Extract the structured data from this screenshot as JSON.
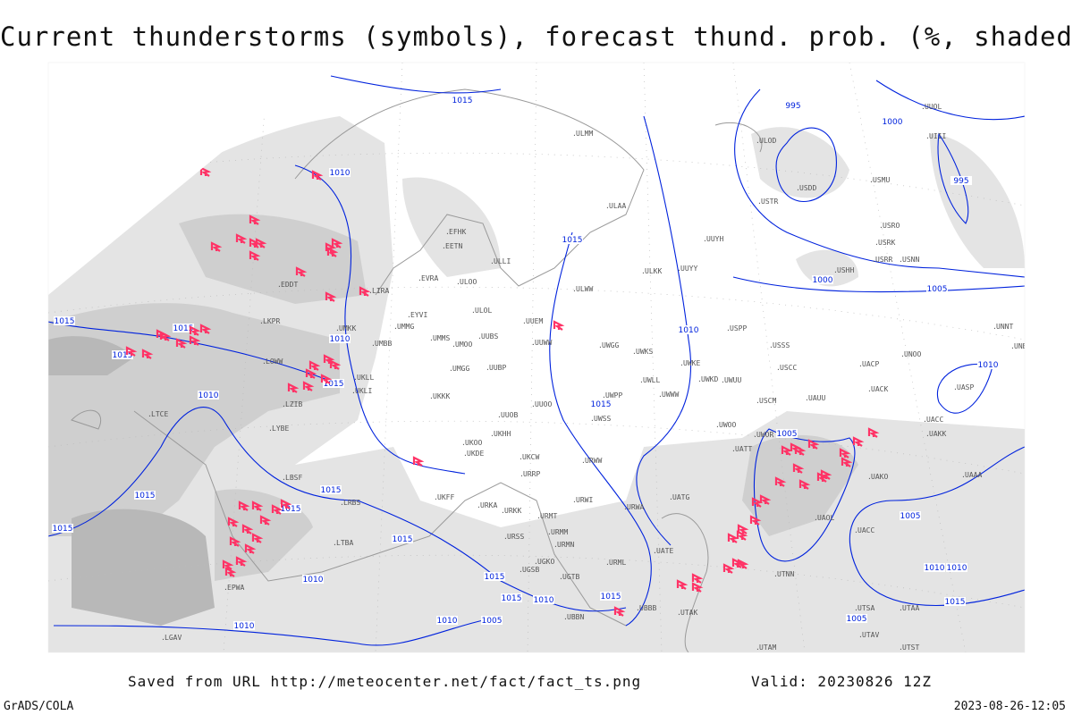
{
  "title": "Current thunderstorms (symbols), forecast thund. prob. (%, shaded)",
  "footer": {
    "saved_from": "Saved from URL http://meteocenter.net/fact/fact_ts.png",
    "valid": "Valid: 20230826 12Z",
    "software": "GrADS/COLA",
    "timestamp": "2023-08-26-12:05"
  },
  "map": {
    "colors": {
      "isobar": "#0022dd",
      "thunderstorm_symbol": "#ff3366",
      "shade_light": "#e4e4e4",
      "shade_mid": "#cfcfcf",
      "shade_dark": "#b8b8b8",
      "coast": "#999999"
    },
    "symbol_icon": "thunderstorm-icon",
    "isobar_labels": [
      "1015",
      "1010",
      "1015",
      "1015",
      "1015",
      "1010",
      "1015",
      "1010",
      "1015",
      "1015",
      "1015",
      "1015",
      "1015",
      "1015",
      "1010",
      "1015",
      "1015",
      "1010",
      "1015",
      "1010",
      "1005",
      "1010",
      "1015",
      "1010",
      "995",
      "1000",
      "995",
      "1000",
      "1005",
      "1010",
      "1005",
      "1005",
      "1010",
      "1010",
      "1015",
      "1005"
    ],
    "stations": [
      "ULMM",
      "ULAA",
      "EFHK",
      "EETN",
      "ULLI",
      "EVRA",
      "ULOO",
      "ULOL",
      "EYVI",
      "UMMG",
      "UMBB",
      "UMMS",
      "UMOO",
      "UUBS",
      "UUEM",
      "UUWW",
      "UMGG",
      "UUBP",
      "UKLL",
      "UKLI",
      "UKKK",
      "UUOO",
      "UUOB",
      "UKHH",
      "UKOO",
      "UKDE",
      "UKCW",
      "URRP",
      "UKFF",
      "URKA",
      "URKK",
      "URMT",
      "URMM",
      "URMN",
      "URSS",
      "UGKO",
      "UGSB",
      "URML",
      "UGTB",
      "UBBN",
      "UBBB",
      "UTAK",
      "UATE",
      "UATG",
      "URWI",
      "URWA",
      "URWW",
      "UWSS",
      "UWPP",
      "UWWW",
      "UWLL",
      "UWKS",
      "UWKE",
      "UWKD",
      "UWUU",
      "UWGG",
      "UWOO",
      "UATT",
      "UWOR",
      "USCM",
      "UAUU",
      "USSS",
      "USCC",
      "USPP",
      "UUYY",
      "UUYH",
      "ULKK",
      "ULWW",
      "USTR",
      "USHH",
      "USRR",
      "USRK",
      "USRO",
      "USNN",
      "USMU",
      "USDD",
      "ULOD",
      "UUOL",
      "UIII",
      "UNNT",
      "UNBB",
      "UNOO",
      "UACP",
      "UACK",
      "UACC",
      "UAKK",
      "UASP",
      "UAAA",
      "UAKO",
      "UAOL",
      "UACC",
      "UTSA",
      "UTAA",
      "UTST",
      "UTAV",
      "UTNN",
      "UTAM",
      "EDDT",
      "LKPR",
      "LOWW",
      "LZIB",
      "LYBE",
      "LBSF",
      "LRBS",
      "LTBA",
      "LTCE",
      "LIRA",
      "UMKK",
      "EPWA",
      "LGAV"
    ]
  }
}
